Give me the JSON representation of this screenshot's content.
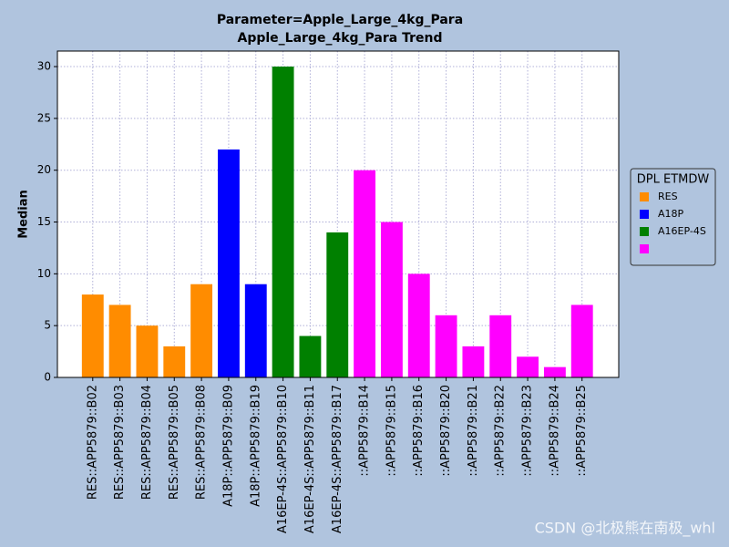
{
  "chart_data": {
    "type": "bar",
    "title": [
      "Parameter=Apple_Large_4kg_Para",
      "Apple_Large_4kg_Para Trend"
    ],
    "y_label": "Median",
    "categories": [
      "RES::APP5879::B02",
      "RES::APP5879::B03",
      "RES::APP5879::B04",
      "RES::APP5879::B05",
      "RES::APP5879::B08",
      "A18P::APP5879::B09",
      "A18P::APP5879::B19",
      "A16EP-4S::APP5879::B10",
      "A16EP-4S::APP5879::B11",
      "A16EP-4S::APP5879::B17",
      "::APP5879::B14",
      "::APP5879::B15",
      "::APP5879::B16",
      "::APP5879::B20",
      "::APP5879::B21",
      "::APP5879::B22",
      "::APP5879::B23",
      "::APP5879::B24",
      "::APP5879::B25"
    ],
    "series": [
      {
        "name": "RES",
        "color": "#ff8c00",
        "values": [
          8,
          7,
          5,
          3,
          9,
          null,
          null,
          null,
          null,
          null,
          null,
          null,
          null,
          null,
          null,
          null,
          null,
          null,
          null
        ]
      },
      {
        "name": "A18P",
        "color": "#0000ff",
        "values": [
          null,
          null,
          null,
          null,
          null,
          22,
          9,
          null,
          null,
          null,
          null,
          null,
          null,
          null,
          null,
          null,
          null,
          null,
          null
        ]
      },
      {
        "name": "A16EP-4S",
        "color": "#008000",
        "values": [
          null,
          null,
          null,
          null,
          null,
          null,
          null,
          30,
          4,
          14,
          null,
          null,
          null,
          null,
          null,
          null,
          null,
          null,
          null
        ]
      },
      {
        "name": null,
        "color": "#ff00ff",
        "values": [
          null,
          null,
          null,
          null,
          null,
          null,
          null,
          null,
          null,
          null,
          20,
          15,
          10,
          6,
          3,
          6,
          2,
          1,
          7
        ]
      }
    ],
    "legend_title": "DPL ETMDW",
    "legend": "right",
    "ylim": [
      0,
      31.5
    ],
    "yticks": [
      0,
      5,
      10,
      15,
      20,
      25,
      30
    ],
    "grid": true,
    "watermark": "CSDN @北极熊在南极_whl"
  }
}
